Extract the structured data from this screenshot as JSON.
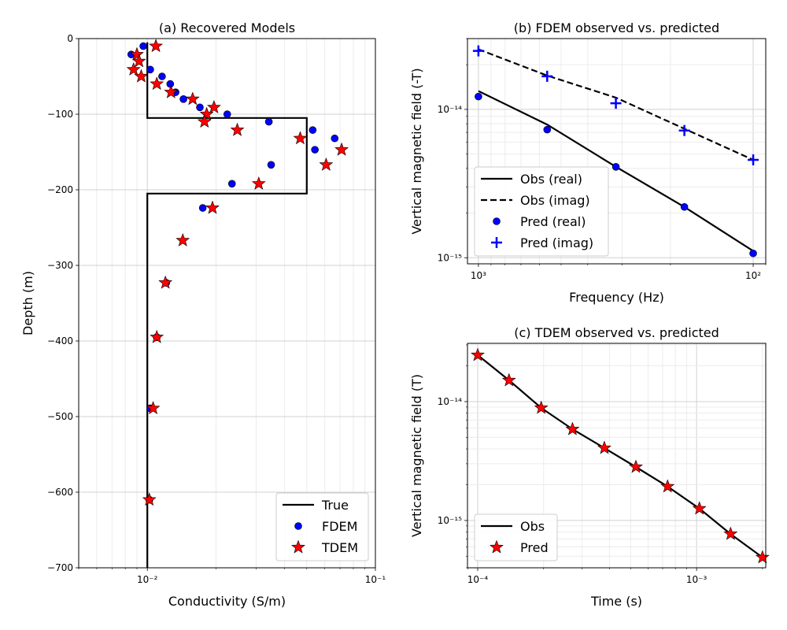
{
  "chart_data": [
    {
      "type": "line",
      "title": "(a) Recovered Models",
      "xlabel": "Conductivity (S/m)",
      "ylabel": "Depth (m)",
      "xscale": "log",
      "xlim": [
        0.005,
        0.1
      ],
      "ylim": [
        -700,
        0
      ],
      "xticks": [
        {
          "value": 0.01,
          "label": "10⁻²"
        },
        {
          "value": 0.1,
          "label": "10⁻¹"
        }
      ],
      "yticks": [
        {
          "value": 0,
          "label": "0"
        },
        {
          "value": -100,
          "label": "−100"
        },
        {
          "value": -200,
          "label": "−200"
        },
        {
          "value": -300,
          "label": "−300"
        },
        {
          "value": -400,
          "label": "−400"
        },
        {
          "value": -500,
          "label": "−500"
        },
        {
          "value": -600,
          "label": "−600"
        },
        {
          "value": -700,
          "label": "−700"
        }
      ],
      "grid": "major+minor",
      "legend": "lower-right",
      "series": [
        {
          "name": "True",
          "style": "line",
          "color": "#000000",
          "x": [
            0.01,
            0.01,
            0.05,
            0.05,
            0.01,
            0.01
          ],
          "y": [
            -5,
            -105,
            -105,
            -205,
            -205,
            -700
          ]
        },
        {
          "name": "FDEM",
          "style": "circle",
          "color": "#0000ff",
          "x": [
            0.0096,
            0.0085,
            0.0103,
            0.0116,
            0.0126,
            0.0133,
            0.0144,
            0.017,
            0.0224,
            0.0341,
            0.0531,
            0.0663,
            0.0543,
            0.0349,
            0.0235,
            0.0175,
            0.0121,
            0.011,
            0.0103,
            0.0102
          ],
          "y": [
            -10,
            -21,
            -41,
            -50,
            -60,
            -71,
            -80,
            -91,
            -100,
            -110,
            -121,
            -132,
            -147,
            -167,
            -192,
            -224,
            -323,
            -395,
            -489,
            -610
          ]
        },
        {
          "name": "TDEM",
          "style": "star",
          "color": "#ff0000",
          "x": [
            0.0109,
            0.009,
            0.0092,
            0.0087,
            0.0094,
            0.011,
            0.0127,
            0.0158,
            0.0196,
            0.0182,
            0.0178,
            0.0248,
            0.0468,
            0.0711,
            0.0608,
            0.0308,
            0.0193,
            0.0143,
            0.012,
            0.011,
            0.0106,
            0.0102
          ],
          "y": [
            -10,
            -21,
            -30,
            -41,
            -50,
            -60,
            -71,
            -80,
            -91,
            -100,
            -110,
            -121,
            -132,
            -147,
            -167,
            -192,
            -224,
            -267,
            -323,
            -395,
            -489,
            -610
          ]
        }
      ]
    },
    {
      "type": "line",
      "title": "(b) FDEM observed vs. predicted",
      "xlabel": "Frequency (Hz)",
      "ylabel": "Vertical magnetic field (-T)",
      "xscale": "log",
      "yscale": "log",
      "xlim": [
        1096,
        90
      ],
      "ylim": [
        9.1e-16,
        3e-14
      ],
      "xticks": [
        {
          "value": 1000,
          "label": "10³"
        },
        {
          "value": 100,
          "label": "10²"
        }
      ],
      "yticks": [
        {
          "value": 1e-14,
          "label": "10⁻¹⁴"
        },
        {
          "value": 1e-15,
          "label": "10⁻¹⁵"
        }
      ],
      "grid": "major+minor",
      "legend": "lower-left",
      "series": [
        {
          "name": "Obs (real)",
          "style": "line",
          "color": "#000000",
          "x": [
            1000,
            562,
            316,
            178,
            100
          ],
          "y": [
            1.33e-14,
            7.9e-15,
            4.1e-15,
            2.2e-15,
            1.11e-15
          ]
        },
        {
          "name": "Obs (imag)",
          "style": "dashed",
          "color": "#000000",
          "x": [
            1000,
            562,
            316,
            178,
            100
          ],
          "y": [
            2.54e-14,
            1.69e-14,
            1.2e-14,
            7.4e-15,
            4.57e-15
          ]
        },
        {
          "name": "Pred (real)",
          "style": "circle",
          "color": "#0000ff",
          "x": [
            1000,
            562,
            316,
            178,
            100
          ],
          "y": [
            1.22e-14,
            7.3e-15,
            4.1e-15,
            2.2e-15,
            1.07e-15
          ]
        },
        {
          "name": "Pred (imag)",
          "style": "plus",
          "color": "#0000ff",
          "x": [
            1000,
            562,
            316,
            178,
            100
          ],
          "y": [
            2.48e-14,
            1.67e-14,
            1.1e-14,
            7.2e-15,
            4.57e-15
          ]
        }
      ]
    },
    {
      "type": "line",
      "title": "(c) TDEM observed vs. predicted",
      "xlabel": "Time (s)",
      "ylabel": "Vertical magnetic field (T)",
      "xscale": "log",
      "yscale": "log",
      "xlim": [
        8.98e-05,
        0.00207
      ],
      "ylim": [
        4e-16,
        3.09e-14
      ],
      "xticks": [
        {
          "value": 0.0001,
          "label": "10⁻⁴"
        },
        {
          "value": 0.001,
          "label": "10⁻³"
        }
      ],
      "yticks": [
        {
          "value": 1e-14,
          "label": "10⁻¹⁴"
        },
        {
          "value": 1e-15,
          "label": "10⁻¹⁵"
        }
      ],
      "grid": "major+minor",
      "legend": "lower-left",
      "series": [
        {
          "name": "Obs",
          "style": "line",
          "color": "#000000",
          "x": [
            0.0001,
            0.000139,
            0.000195,
            0.000271,
            0.000379,
            0.000528,
            0.000737,
            0.00103,
            0.00143,
            0.002
          ],
          "y": [
            2.46e-14,
            1.51e-14,
            8.85e-15,
            5.86e-15,
            4.07e-15,
            2.82e-15,
            1.93e-15,
            1.26e-15,
            7.7e-16,
            4.89e-16
          ]
        },
        {
          "name": "Pred",
          "style": "star",
          "color": "#ff0000",
          "x": [
            0.0001,
            0.000139,
            0.000195,
            0.000271,
            0.000379,
            0.000528,
            0.000737,
            0.00103,
            0.00143,
            0.002
          ],
          "y": [
            2.46e-14,
            1.51e-14,
            8.85e-15,
            5.86e-15,
            4.07e-15,
            2.82e-15,
            1.93e-15,
            1.26e-15,
            7.7e-16,
            4.89e-16
          ]
        }
      ]
    }
  ]
}
